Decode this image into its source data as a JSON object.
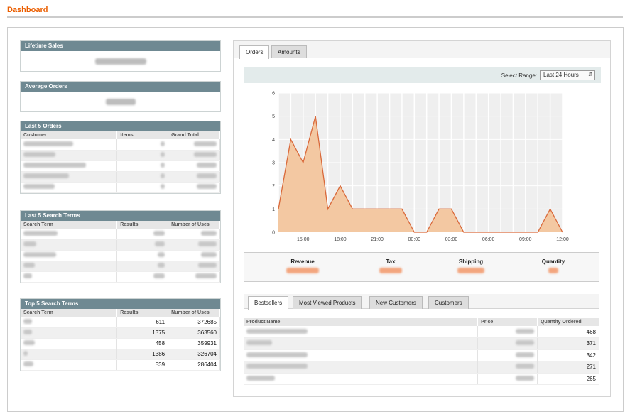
{
  "page": {
    "title": "Dashboard"
  },
  "lifetime_sales": {
    "title": "Lifetime Sales"
  },
  "average_orders": {
    "title": "Average Orders"
  },
  "last_orders": {
    "title": "Last 5 Orders",
    "headers": [
      "Customer",
      "Items",
      "Grand Total"
    ]
  },
  "last_search": {
    "title": "Last 5 Search Terms",
    "headers": [
      "Search Term",
      "Results",
      "Number of Uses"
    ]
  },
  "top_search": {
    "title": "Top 5 Search Terms",
    "headers": [
      "Search Term",
      "Results",
      "Number of Uses"
    ],
    "rows": [
      {
        "results": "611",
        "uses": "372685"
      },
      {
        "results": "1375",
        "uses": "363560"
      },
      {
        "results": "458",
        "uses": "359931"
      },
      {
        "results": "1386",
        "uses": "326704"
      },
      {
        "results": "539",
        "uses": "286404"
      }
    ]
  },
  "graph_tabs": [
    "Orders",
    "Amounts"
  ],
  "range": {
    "label": "Select Range:",
    "value": "Last 24 Hours"
  },
  "chart_data": {
    "type": "area",
    "x_ticks": [
      "15:00",
      "18:00",
      "21:00",
      "00:00",
      "03:00",
      "06:00",
      "09:00",
      "12:00"
    ],
    "y_ticks": [
      "0",
      "1",
      "2",
      "3",
      "4",
      "5",
      "6"
    ],
    "ylim": [
      0,
      6
    ],
    "values": [
      1,
      4,
      3,
      5,
      1,
      2,
      1,
      1,
      1,
      1,
      1,
      0,
      0,
      1,
      1,
      0,
      0,
      0,
      0,
      0,
      0,
      0,
      1,
      0
    ],
    "colors": {
      "fill": "#f3c8a2",
      "line": "#d9693a"
    }
  },
  "totals": {
    "labels": [
      "Revenue",
      "Tax",
      "Shipping",
      "Quantity"
    ]
  },
  "product_tabs": [
    "Bestsellers",
    "Most Viewed Products",
    "New Customers",
    "Customers"
  ],
  "bestsellers": {
    "headers": [
      "Product Name",
      "Price",
      "Quantity Ordered"
    ],
    "quantities": [
      "468",
      "371",
      "342",
      "271",
      "265"
    ]
  },
  "colors": {
    "accent": "#eb5e00",
    "box_header": "#6f8992"
  }
}
